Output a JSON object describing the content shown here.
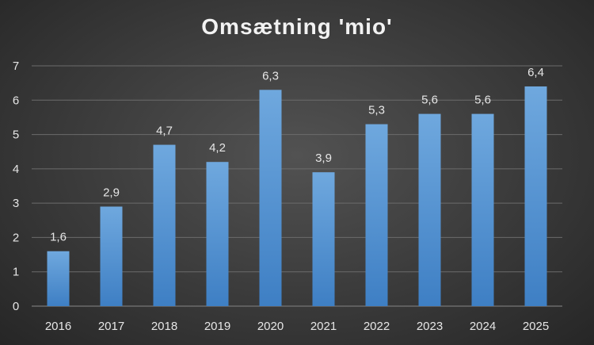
{
  "chart_data": {
    "type": "bar",
    "title": "Omsætning 'mio'",
    "xlabel": "",
    "ylabel": "",
    "categories": [
      "2016",
      "2017",
      "2018",
      "2019",
      "2020",
      "2021",
      "2022",
      "2023",
      "2024",
      "2025"
    ],
    "values": [
      1.6,
      2.9,
      4.7,
      4.2,
      6.3,
      3.9,
      5.3,
      5.6,
      5.6,
      6.4
    ],
    "value_labels": [
      "1,6",
      "2,9",
      "4,7",
      "4,2",
      "6,3",
      "3,9",
      "5,3",
      "5,6",
      "5,6",
      "6,4"
    ],
    "ylim": [
      0,
      7
    ],
    "yticks": [
      "0",
      "1",
      "2",
      "3",
      "4",
      "5",
      "6",
      "7"
    ],
    "grid": true,
    "legend": "none",
    "colors": {
      "bar_top": "#6fa8de",
      "bar_bottom": "#3e7fc4",
      "grid": "#6b6b6b",
      "text": "#e6e6e6"
    }
  }
}
